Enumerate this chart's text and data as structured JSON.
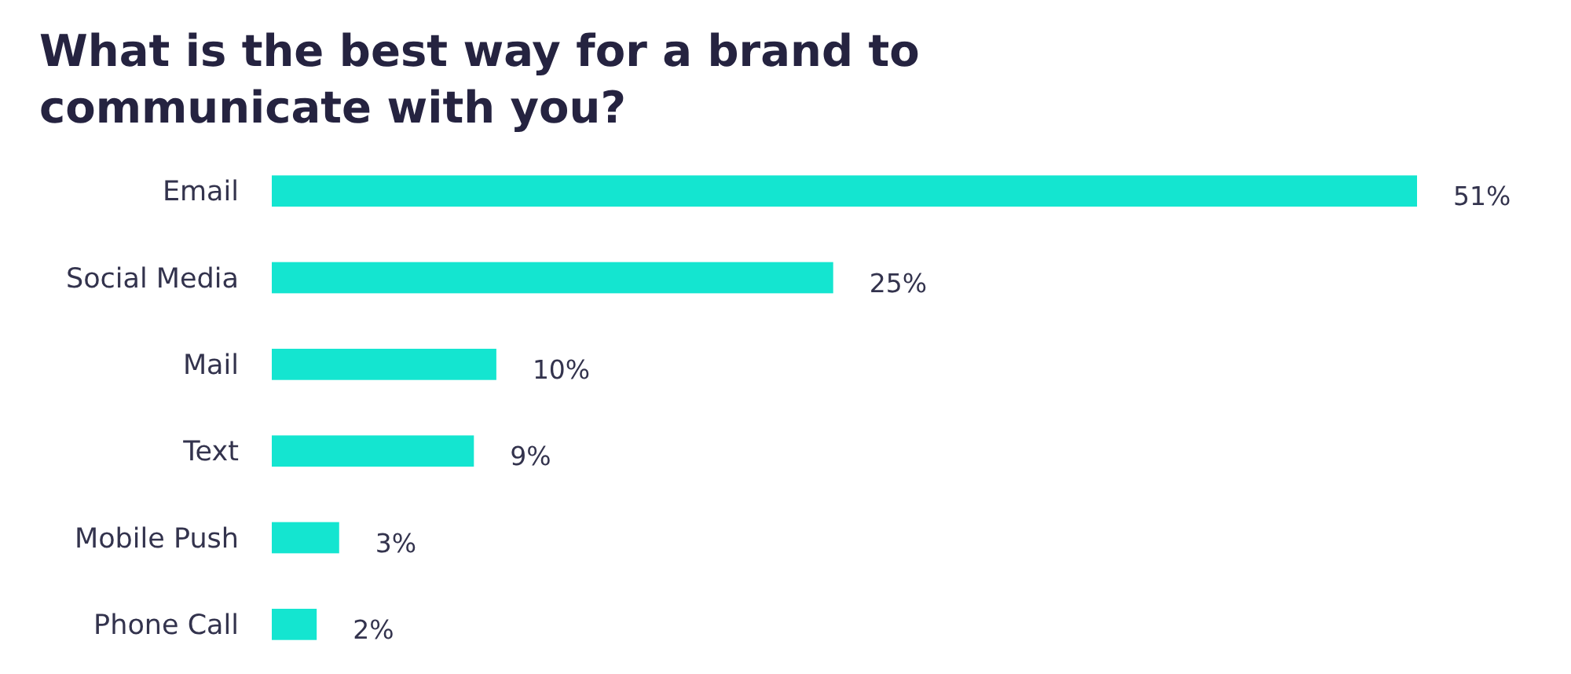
{
  "chart_data": {
    "type": "bar",
    "orientation": "horizontal",
    "title": "What is the best way for a brand to communicate with you?",
    "categories": [
      "Email",
      "Social Media",
      "Mail",
      "Text",
      "Mobile Push",
      "Phone Call"
    ],
    "values": [
      51,
      25,
      10,
      9,
      3,
      2
    ],
    "color": "#14e5d0",
    "value_labels": [
      "51%",
      "25%",
      "10%",
      "9%",
      "3%",
      "2%"
    ],
    "tick_labels": "y"
  }
}
